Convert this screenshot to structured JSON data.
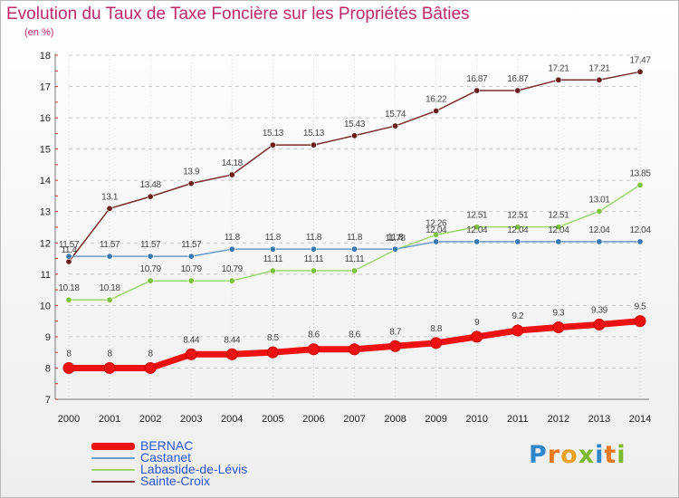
{
  "title": "Evolution du Taux de Taxe Foncière sur les Propriétés Bâties",
  "unit": "(en %)",
  "logo": {
    "letters": [
      {
        "ch": "P",
        "color": "#2f86c9"
      },
      {
        "ch": "r",
        "color": "#e8791e"
      },
      {
        "ch": "o",
        "color": "#e8a21e"
      },
      {
        "ch": "x",
        "color": "#7db928"
      },
      {
        "ch": "i",
        "color": "#2f86c9"
      },
      {
        "ch": "t",
        "color": "#e8791e"
      },
      {
        "ch": "i",
        "color": "#7db928"
      }
    ]
  },
  "chart_data": {
    "type": "line",
    "title": "Evolution du Taux de Taxe Foncière sur les Propriétés Bâties",
    "ylabel": "(en %)",
    "xlabel": "",
    "x": [
      "2000",
      "2001",
      "2002",
      "2003",
      "2004",
      "2005",
      "2006",
      "2007",
      "2008",
      "2009",
      "2010",
      "2011",
      "2012",
      "2013",
      "2014"
    ],
    "ylim": [
      7,
      18
    ],
    "yticks": [
      "7",
      "8",
      "9",
      "10",
      "11",
      "12",
      "13",
      "14",
      "15",
      "16",
      "17",
      "18"
    ],
    "grid": true,
    "legend": "bottom-left",
    "series": [
      {
        "name": "BERNAC",
        "color": "#ee1111",
        "values": [
          8,
          8,
          8,
          8.44,
          8.44,
          8.5,
          8.6,
          8.6,
          8.7,
          8.8,
          9,
          9.2,
          9.3,
          9.39,
          9.5
        ],
        "labels": [
          "8",
          "8",
          "8",
          "8.44",
          "8.44",
          "8.5",
          "8.6",
          "8.6",
          "8.7",
          "8.8",
          "9",
          "9.2",
          "9.3",
          "9.39",
          "9.5"
        ]
      },
      {
        "name": "Castanet",
        "color": "#6a9ccc",
        "values": [
          11.57,
          11.57,
          11.57,
          11.57,
          11.8,
          11.8,
          11.8,
          11.8,
          11.8,
          12.04,
          12.04,
          12.04,
          12.04,
          12.04,
          12.04
        ],
        "labels": [
          "11.57",
          "11.57",
          "11.57",
          "11.57",
          "11.8",
          "11.8",
          "11.8",
          "11.8",
          "11.8",
          "12.04",
          "12.04",
          "12.04",
          "12.04",
          "12.04",
          "12.04"
        ]
      },
      {
        "name": "Labastide-de-Lévis",
        "color": "#9ed66e",
        "values": [
          10.18,
          10.18,
          10.79,
          10.79,
          10.79,
          11.11,
          11.11,
          11.11,
          11.78,
          12.26,
          12.51,
          12.51,
          12.51,
          13.01,
          13.85
        ],
        "labels": [
          "10.18",
          "10.18",
          "10.79",
          "10.79",
          "10.79",
          "11.11",
          "11.11",
          "11.11",
          "11.78",
          "12.26",
          "12.51",
          "12.51",
          "12.51",
          "13.01",
          "13.85"
        ]
      },
      {
        "name": "Sainte-Croix",
        "color": "#7a2d2d",
        "values": [
          11.4,
          13.1,
          13.48,
          13.9,
          14.18,
          15.13,
          15.13,
          15.43,
          15.74,
          16.22,
          16.87,
          16.87,
          17.21,
          17.21,
          17.47
        ],
        "labels": [
          "11.4",
          "13.1",
          "13.48",
          "13.9",
          "14.18",
          "15.13",
          "15.13",
          "15.43",
          "15.74",
          "16.22",
          "16.87",
          "16.87",
          "17.21",
          "17.21",
          "17.47"
        ]
      }
    ]
  }
}
